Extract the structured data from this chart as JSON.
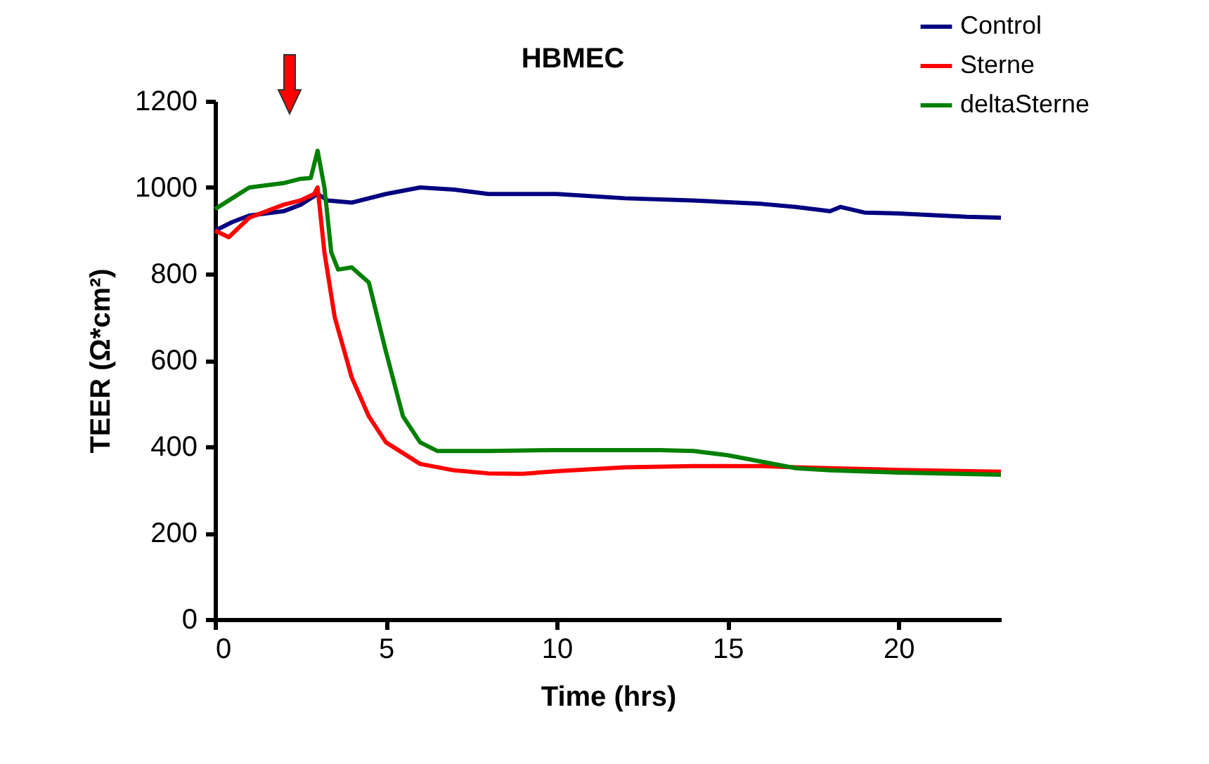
{
  "chart_data": {
    "type": "line",
    "title": "HBMEC",
    "xlabel": "Time (hrs)",
    "ylabel": "TEER (Ω*cm²)",
    "xlim": [
      0,
      23
    ],
    "xticks": [
      0,
      5,
      10,
      15,
      20
    ],
    "ylim": [
      0,
      1200
    ],
    "yticks": [
      0,
      200,
      400,
      600,
      800,
      1000,
      1200
    ],
    "grid": false,
    "legend": "top right",
    "marker": "none",
    "line_style": "solid",
    "series": [
      {
        "name": "Control",
        "color": "#000080",
        "x": [
          0,
          0.5,
          1,
          2,
          2.5,
          3,
          3.3,
          4,
          5,
          6,
          7,
          8,
          10,
          12,
          14,
          16,
          17,
          18,
          18.3,
          19,
          20,
          22,
          23
        ],
        "values": [
          900,
          920,
          935,
          945,
          960,
          985,
          970,
          965,
          985,
          1000,
          995,
          985,
          985,
          975,
          970,
          962,
          955,
          945,
          955,
          942,
          940,
          932,
          930
        ]
      },
      {
        "name": "Sterne",
        "color": "#ff0000",
        "x": [
          0,
          0.4,
          1,
          2,
          2.5,
          2.9,
          3,
          3.2,
          3.5,
          4,
          4.5,
          5,
          6,
          7,
          8,
          9,
          10,
          12,
          14,
          16,
          17,
          20,
          23
        ],
        "values": [
          900,
          885,
          930,
          960,
          970,
          985,
          1000,
          850,
          700,
          560,
          470,
          410,
          360,
          345,
          338,
          337,
          343,
          352,
          355,
          355,
          352,
          346,
          342
        ]
      },
      {
        "name": "deltaSterne",
        "color": "#008000",
        "x": [
          0,
          0.5,
          1,
          2,
          2.5,
          2.8,
          3,
          3.2,
          3.4,
          3.6,
          4,
          4.5,
          5,
          5.5,
          6,
          6.5,
          7,
          8,
          10,
          13,
          14,
          15,
          16,
          17,
          18,
          20,
          23
        ],
        "values": [
          950,
          975,
          1000,
          1010,
          1020,
          1022,
          1085,
          1000,
          850,
          810,
          815,
          780,
          620,
          470,
          410,
          390,
          390,
          390,
          392,
          392,
          390,
          380,
          365,
          350,
          345,
          340,
          335
        ]
      }
    ]
  }
}
